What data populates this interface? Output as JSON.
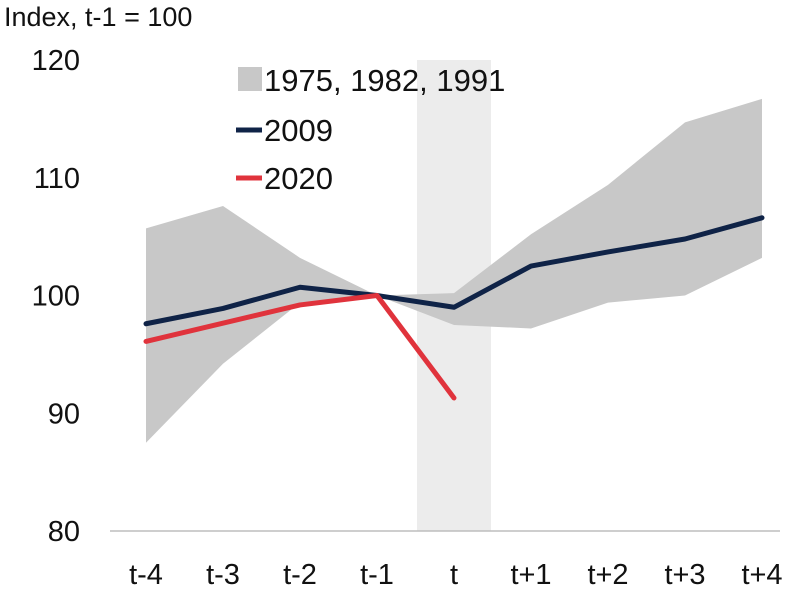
{
  "chart_data": {
    "type": "line",
    "unit_label": "Index, t-1 = 100",
    "categories": [
      "t-4",
      "t-3",
      "t-2",
      "t-1",
      "t",
      "t+1",
      "t+2",
      "t+3",
      "t+4"
    ],
    "ylim": [
      80,
      120
    ],
    "yticks": [
      "80",
      "90",
      "100",
      "110",
      "120"
    ],
    "highlight_category": "t",
    "band": {
      "name": "1975, 1982, 1991",
      "color": "#c8c8c8",
      "upper": [
        105.7,
        107.6,
        103.2,
        100.0,
        100.2,
        105.2,
        109.4,
        114.7,
        116.7
      ],
      "lower": [
        87.5,
        94.2,
        99.4,
        100.0,
        97.5,
        97.2,
        99.4,
        100.0,
        103.2
      ]
    },
    "series": [
      {
        "name": "2009",
        "color": "#0f2347",
        "values": [
          97.6,
          98.9,
          100.7,
          100.0,
          99.0,
          102.5,
          103.7,
          104.8,
          106.6
        ]
      },
      {
        "name": "2020",
        "color": "#e0333c",
        "values": [
          96.1,
          null,
          99.2,
          100.0,
          91.3,
          null,
          null,
          null,
          null
        ]
      }
    ],
    "grid": false,
    "legend_position": "top-left"
  }
}
